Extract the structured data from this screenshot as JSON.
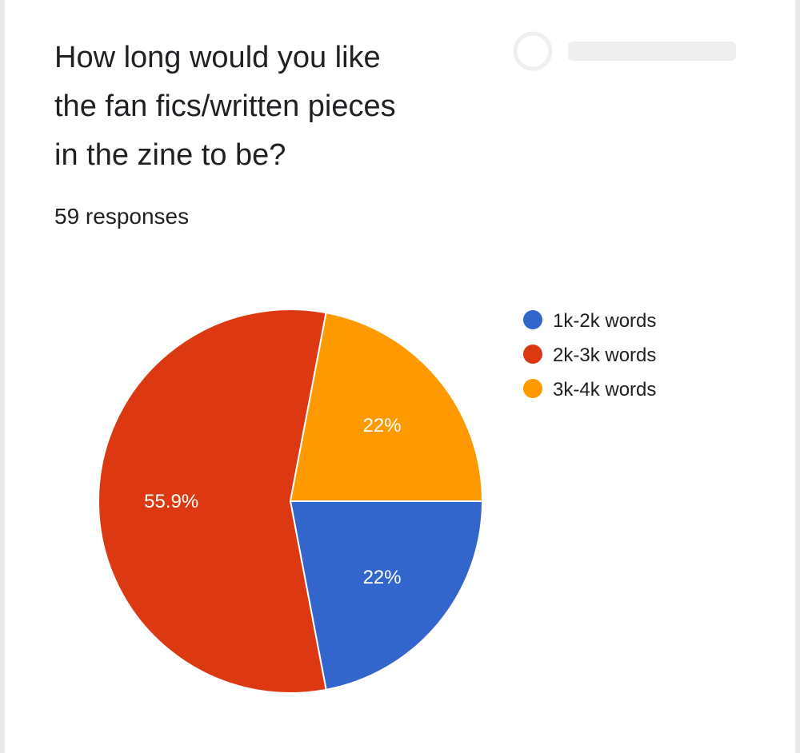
{
  "header": {
    "title_lines": [
      "How long would you like",
      "the fan fics/written pieces",
      "in the zine to be?"
    ],
    "responses": "59 responses"
  },
  "colors": {
    "1k-2k": "#3366cc",
    "2k-3k": "#dc3912",
    "3k-4k": "#ff9900"
  },
  "chart_data": {
    "type": "pie",
    "title": "How long would you like the fan fics/written pieces in the zine to be?",
    "slices": [
      {
        "label": "1k-2k words",
        "value": 22,
        "display": "22%",
        "color": "#3366cc"
      },
      {
        "label": "2k-3k words",
        "value": 55.9,
        "display": "55.9%",
        "color": "#dc3912"
      },
      {
        "label": "3k-4k words",
        "value": 22,
        "display": "22%",
        "color": "#ff9900"
      }
    ],
    "legend_position": "right"
  }
}
